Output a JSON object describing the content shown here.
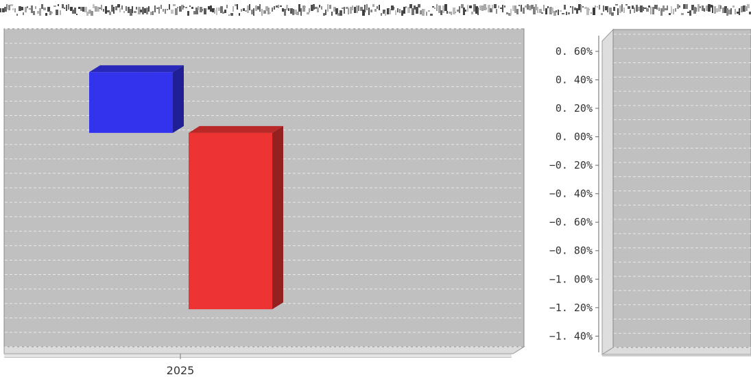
{
  "header_strip": {
    "text": ""
  },
  "chart_data": [
    {
      "type": "bar",
      "categories": [
        "2025"
      ],
      "series": [
        {
          "values": [
            0.42
          ],
          "color": "#3333ee"
        },
        {
          "values": [
            -1.22
          ],
          "color": "#ee3333"
        }
      ],
      "value_unit": "%",
      "ylim": [
        -1.48,
        0.72
      ],
      "grid": true,
      "plot_background": "#c0c0c0",
      "style": "3d"
    },
    {
      "type": "bar",
      "categories": [],
      "series": [],
      "y_tick_labels": [
        "0. 60%",
        "0. 40%",
        "0. 20%",
        "0. 00%",
        "−0. 20%",
        "−0. 40%",
        "−0. 60%",
        "−0. 80%",
        "−1. 00%",
        "−1. 20%",
        "−1. 40%"
      ],
      "ylim": [
        -1.48,
        0.72
      ],
      "grid": true,
      "plot_background": "#c0c0c0",
      "style": "3d"
    }
  ]
}
